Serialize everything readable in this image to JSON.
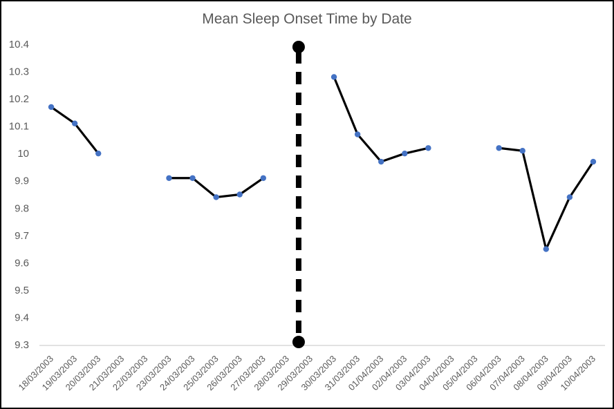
{
  "chart_data": {
    "type": "line",
    "title": "Mean Sleep Onset Time by Date",
    "xlabel": "",
    "ylabel": "",
    "categories": [
      "18/03/2003",
      "19/03/2003",
      "20/03/2003",
      "21/03/2003",
      "22/03/2003",
      "23/03/2003",
      "24/03/2003",
      "25/03/2003",
      "26/03/2003",
      "27/03/2003",
      "28/03/2003",
      "29/03/2003",
      "30/03/2003",
      "31/03/2003",
      "01/04/2003",
      "02/04/2003",
      "03/04/2003",
      "04/04/2003",
      "05/04/2003",
      "06/04/2003",
      "07/04/2003",
      "08/04/2003",
      "09/04/2003",
      "10/04/2003"
    ],
    "values": [
      10.17,
      10.11,
      10.0,
      null,
      null,
      9.91,
      9.91,
      9.84,
      9.85,
      9.91,
      null,
      null,
      10.28,
      10.07,
      9.97,
      10.0,
      10.02,
      null,
      null,
      10.02,
      10.01,
      9.65,
      9.84,
      9.97
    ],
    "ylim": [
      9.3,
      10.4
    ],
    "ytick_labels": [
      "9.3",
      "9.4",
      "9.5",
      "9.6",
      "9.7",
      "9.8",
      "9.9",
      "10",
      "10.1",
      "10.2",
      "10.3",
      "10.4"
    ],
    "grid": false,
    "legend": false,
    "x_axis_label_rotation_deg": 45,
    "divider": {
      "style": "dashed",
      "between": [
        "28/03/2003",
        "29/03/2003"
      ],
      "top_value": 10.39,
      "bottom_value": 9.31
    },
    "colors": {
      "line": "#000000",
      "marker": "#4472C4",
      "divider": "#000000",
      "axis_line": "#D9D9D9",
      "text": "#595959",
      "background": "#FFFFFF",
      "frame_border": "#000000"
    }
  }
}
